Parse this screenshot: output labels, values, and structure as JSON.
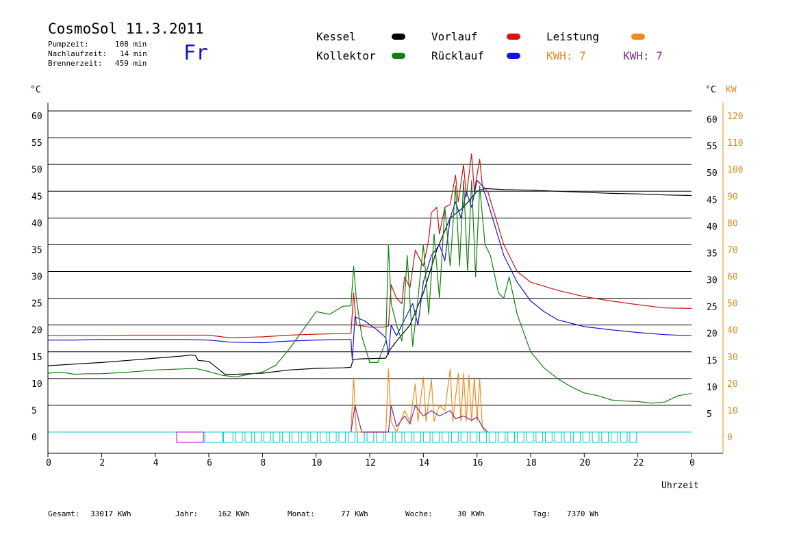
{
  "header": {
    "title": "CosmoSol 11.3.2011",
    "day": "Fr",
    "stats": [
      {
        "label": "Pumpzeit:",
        "value": "108 min"
      },
      {
        "label": "Nachlaufzeit:",
        "value": "14 min"
      },
      {
        "label": "Brennerzeit:",
        "value": "459 min"
      }
    ]
  },
  "legend": {
    "items": [
      {
        "label": "Kessel",
        "color": "#000000"
      },
      {
        "label": "Vorlauf",
        "color": "#e01010"
      },
      {
        "label": "Leistung",
        "color": "#f08c1e"
      },
      {
        "label": "Kollektor",
        "color": "#108010"
      },
      {
        "label": "Rücklauf",
        "color": "#1414e0"
      }
    ],
    "kwh_orange": "KWH: 7",
    "kwh_purple": "KWH: 7"
  },
  "axes": {
    "left_unit": "°C",
    "right_unit_temp": "°C",
    "right_unit_power": "KW",
    "x_label": "Uhrzeit"
  },
  "footer": {
    "items": [
      {
        "label": "Gesamt:",
        "value": "33017 KWh"
      },
      {
        "label": "Jahr:",
        "value": "162 KWh"
      },
      {
        "label": "Monat:",
        "value": "77 KWh"
      },
      {
        "label": "Woche:",
        "value": "30 KWh"
      },
      {
        "label": "Tag:",
        "value": "7370 Wh"
      }
    ]
  },
  "chart_data": {
    "type": "line",
    "x_range": [
      0,
      24
    ],
    "x_ticks": [
      "0",
      "2",
      "4",
      "6",
      "8",
      "10",
      "12",
      "14",
      "16",
      "18",
      "20",
      "22",
      "0"
    ],
    "y_left_ticks": [
      "0",
      "5",
      "10",
      "15",
      "20",
      "25",
      "30",
      "35",
      "40",
      "45",
      "50",
      "55",
      "60"
    ],
    "y_right_temp_ticks": [
      "5",
      "10",
      "15",
      "20",
      "25",
      "30",
      "35",
      "40",
      "45",
      "50",
      "55",
      "60"
    ],
    "y_right_power_ticks": [
      "0",
      "10",
      "20",
      "30",
      "40",
      "50",
      "60",
      "70",
      "80",
      "90",
      "100",
      "110",
      "120"
    ],
    "ylim": [
      0,
      60
    ],
    "grid": "horizontal",
    "series": [
      {
        "name": "Kessel",
        "color": "#000000",
        "points": [
          [
            0,
            12.4
          ],
          [
            1,
            12.7
          ],
          [
            2,
            13
          ],
          [
            3,
            13.4
          ],
          [
            4,
            13.8
          ],
          [
            5,
            14.2
          ],
          [
            5.3,
            14.4
          ],
          [
            5.5,
            14.3
          ],
          [
            5.6,
            13.4
          ],
          [
            6,
            13.2
          ],
          [
            6.3,
            12
          ],
          [
            6.6,
            10.8
          ],
          [
            7,
            10.8
          ],
          [
            8,
            11
          ],
          [
            9,
            11.6
          ],
          [
            10,
            11.9
          ],
          [
            11,
            12
          ],
          [
            11.3,
            12.1
          ],
          [
            11.35,
            13
          ],
          [
            11.4,
            13.6
          ],
          [
            11.8,
            13.7
          ],
          [
            12.6,
            13.8
          ],
          [
            12.7,
            15
          ],
          [
            13,
            17
          ],
          [
            13.5,
            20
          ],
          [
            14,
            26
          ],
          [
            14.5,
            34
          ],
          [
            15,
            40
          ],
          [
            15.5,
            42
          ],
          [
            16,
            45
          ],
          [
            16.3,
            45.5
          ],
          [
            17,
            45.3
          ],
          [
            18,
            45.2
          ],
          [
            19,
            45
          ],
          [
            20,
            44.8
          ],
          [
            21,
            44.6
          ],
          [
            22,
            44.5
          ],
          [
            23,
            44.3
          ],
          [
            24,
            44.2
          ]
        ]
      },
      {
        "name": "Vorlauf",
        "color": "#c81414",
        "points": [
          [
            0,
            18
          ],
          [
            1,
            18
          ],
          [
            2,
            18
          ],
          [
            3,
            18.1
          ],
          [
            4,
            18.1
          ],
          [
            5,
            18.1
          ],
          [
            6,
            18.1
          ],
          [
            6.8,
            17.6
          ],
          [
            8,
            17.8
          ],
          [
            9,
            18.1
          ],
          [
            10,
            18.3
          ],
          [
            11,
            18.4
          ],
          [
            11.3,
            18.4
          ],
          [
            11.4,
            26
          ],
          [
            11.5,
            20
          ],
          [
            12,
            19.6
          ],
          [
            12.5,
            19.6
          ],
          [
            12.7,
            19.8
          ],
          [
            12.8,
            27.5
          ],
          [
            13,
            25
          ],
          [
            13.2,
            24
          ],
          [
            13.3,
            29
          ],
          [
            13.5,
            27
          ],
          [
            13.7,
            34
          ],
          [
            14,
            31
          ],
          [
            14.2,
            36
          ],
          [
            14.3,
            41
          ],
          [
            14.5,
            42
          ],
          [
            14.6,
            37
          ],
          [
            14.8,
            42
          ],
          [
            15,
            42.5
          ],
          [
            15.2,
            48
          ],
          [
            15.3,
            43
          ],
          [
            15.5,
            50
          ],
          [
            15.6,
            44
          ],
          [
            15.8,
            52
          ],
          [
            15.9,
            45
          ],
          [
            16.1,
            51
          ],
          [
            16.2,
            46
          ],
          [
            16.4,
            45
          ],
          [
            16.7,
            40
          ],
          [
            17,
            35
          ],
          [
            17.5,
            30
          ],
          [
            18,
            28
          ],
          [
            19,
            26.5
          ],
          [
            20,
            25.3
          ],
          [
            21,
            24.5
          ],
          [
            22,
            23.8
          ],
          [
            23,
            23.2
          ],
          [
            24,
            23.1
          ]
        ]
      },
      {
        "name": "Rücklauf",
        "color": "#1414c8",
        "points": [
          [
            0,
            17.2
          ],
          [
            1,
            17.2
          ],
          [
            2,
            17.3
          ],
          [
            3,
            17.3
          ],
          [
            4,
            17.3
          ],
          [
            5,
            17.3
          ],
          [
            6,
            17.2
          ],
          [
            6.8,
            16.8
          ],
          [
            8,
            16.7
          ],
          [
            9,
            17
          ],
          [
            10,
            17.2
          ],
          [
            11,
            17.3
          ],
          [
            11.3,
            17.3
          ],
          [
            11.35,
            13.5
          ],
          [
            11.45,
            21.5
          ],
          [
            11.8,
            20.8
          ],
          [
            12.3,
            19
          ],
          [
            12.6,
            17.6
          ],
          [
            12.7,
            14.5
          ],
          [
            12.8,
            20
          ],
          [
            13,
            18
          ],
          [
            13.3,
            21
          ],
          [
            13.6,
            24
          ],
          [
            13.8,
            20
          ],
          [
            14,
            28
          ],
          [
            14.3,
            33
          ],
          [
            14.6,
            35
          ],
          [
            14.8,
            32
          ],
          [
            15,
            40
          ],
          [
            15.2,
            43
          ],
          [
            15.4,
            40
          ],
          [
            15.6,
            45
          ],
          [
            15.8,
            42
          ],
          [
            16,
            47
          ],
          [
            16.2,
            46
          ],
          [
            16.4,
            43
          ],
          [
            16.7,
            38
          ],
          [
            17,
            33
          ],
          [
            17.5,
            28
          ],
          [
            18,
            24.5
          ],
          [
            18.5,
            22.5
          ],
          [
            19,
            21
          ],
          [
            20,
            19.7
          ],
          [
            21,
            19.1
          ],
          [
            22,
            18.6
          ],
          [
            23,
            18.2
          ],
          [
            24,
            18
          ]
        ]
      },
      {
        "name": "Kollektor",
        "color": "#108010",
        "points": [
          [
            0,
            11
          ],
          [
            0.5,
            11.2
          ],
          [
            1,
            10.8
          ],
          [
            1.5,
            10.9
          ],
          [
            2,
            10.9
          ],
          [
            3,
            11.2
          ],
          [
            4,
            11.6
          ],
          [
            5,
            11.8
          ],
          [
            5.5,
            11.9
          ],
          [
            6,
            11.3
          ],
          [
            6.5,
            10.6
          ],
          [
            7,
            10.3
          ],
          [
            7.5,
            10.8
          ],
          [
            8,
            11.2
          ],
          [
            8.5,
            12.5
          ],
          [
            9,
            15.5
          ],
          [
            9.5,
            19
          ],
          [
            10,
            22.5
          ],
          [
            10.5,
            22
          ],
          [
            11,
            23.5
          ],
          [
            11.3,
            23.6
          ],
          [
            11.4,
            31
          ],
          [
            11.5,
            25
          ],
          [
            11.7,
            18
          ],
          [
            12,
            13
          ],
          [
            12.3,
            13
          ],
          [
            12.6,
            17
          ],
          [
            12.7,
            35
          ],
          [
            12.8,
            24
          ],
          [
            13,
            20
          ],
          [
            13.2,
            17
          ],
          [
            13.4,
            33
          ],
          [
            13.6,
            16
          ],
          [
            13.8,
            25
          ],
          [
            14,
            35
          ],
          [
            14.2,
            22
          ],
          [
            14.4,
            37
          ],
          [
            14.6,
            25
          ],
          [
            14.8,
            42
          ],
          [
            15,
            31
          ],
          [
            15.2,
            46
          ],
          [
            15.35,
            31
          ],
          [
            15.5,
            47
          ],
          [
            15.65,
            30
          ],
          [
            15.8,
            47
          ],
          [
            15.95,
            29
          ],
          [
            16.1,
            46
          ],
          [
            16.3,
            35
          ],
          [
            16.5,
            33
          ],
          [
            16.8,
            26
          ],
          [
            17,
            25
          ],
          [
            17.2,
            29
          ],
          [
            17.5,
            22
          ],
          [
            18,
            15
          ],
          [
            18.5,
            12
          ],
          [
            19,
            10
          ],
          [
            19.5,
            8.5
          ],
          [
            20,
            7.3
          ],
          [
            20.5,
            6.8
          ],
          [
            21,
            6
          ],
          [
            21.5,
            5.8
          ],
          [
            22,
            5.7
          ],
          [
            22.5,
            5.4
          ],
          [
            23,
            5.6
          ],
          [
            23.5,
            6.8
          ],
          [
            24,
            7.2
          ]
        ]
      },
      {
        "name": "Leistung",
        "color": "#f08c1e",
        "points": [
          [
            11.3,
            0
          ],
          [
            11.4,
            10.2
          ],
          [
            11.5,
            0
          ],
          [
            12.6,
            0
          ],
          [
            12.7,
            11.8
          ],
          [
            12.8,
            2
          ],
          [
            13,
            0
          ],
          [
            13.3,
            4
          ],
          [
            13.5,
            2
          ],
          [
            13.7,
            9
          ],
          [
            13.8,
            2
          ],
          [
            14,
            10.2
          ],
          [
            14.1,
            2
          ],
          [
            14.3,
            9.8
          ],
          [
            14.4,
            2
          ],
          [
            14.6,
            5
          ],
          [
            14.8,
            4
          ],
          [
            15,
            11.8
          ],
          [
            15.1,
            2
          ],
          [
            15.3,
            11
          ],
          [
            15.4,
            2
          ],
          [
            15.5,
            11
          ],
          [
            15.6,
            2
          ],
          [
            15.7,
            10.6
          ],
          [
            15.8,
            2
          ],
          [
            15.9,
            10.2
          ],
          [
            16,
            2
          ],
          [
            16.1,
            9.8
          ],
          [
            16.2,
            1
          ],
          [
            16.3,
            0
          ]
        ]
      },
      {
        "name": "Leistung (purple)",
        "color": "#7a2a8a",
        "points": [
          [
            11.3,
            0
          ],
          [
            11.45,
            5
          ],
          [
            11.6,
            2
          ],
          [
            11.7,
            0
          ],
          [
            12.7,
            0
          ],
          [
            12.8,
            5
          ],
          [
            13,
            1
          ],
          [
            13.3,
            3
          ],
          [
            13.5,
            1.5
          ],
          [
            13.7,
            5
          ],
          [
            14,
            3
          ],
          [
            14.3,
            4
          ],
          [
            14.6,
            3
          ],
          [
            15,
            4
          ],
          [
            15.2,
            2.5
          ],
          [
            15.5,
            3
          ],
          [
            15.8,
            2.2
          ],
          [
            16,
            2.8
          ],
          [
            16.2,
            1
          ],
          [
            16.4,
            0
          ]
        ]
      }
    ],
    "pump_blocks": [
      [
        4.8,
        5.8
      ],
      [
        5.85,
        6.5
      ],
      [
        6.55,
        6.9
      ],
      [
        7.0,
        7.25
      ],
      [
        7.35,
        7.6
      ],
      [
        7.7,
        7.95
      ],
      [
        8.05,
        8.3
      ],
      [
        8.4,
        8.65
      ],
      [
        8.75,
        9.0
      ],
      [
        9.1,
        9.35
      ],
      [
        9.45,
        9.7
      ],
      [
        9.8,
        10.05
      ],
      [
        10.15,
        10.4
      ],
      [
        10.5,
        10.75
      ],
      [
        10.85,
        11.1
      ],
      [
        11.2,
        11.45
      ],
      [
        11.55,
        11.8
      ],
      [
        11.9,
        12.15
      ],
      [
        12.25,
        12.5
      ],
      [
        12.6,
        12.85
      ],
      [
        12.95,
        13.2
      ],
      [
        13.3,
        13.55
      ],
      [
        13.65,
        13.9
      ],
      [
        14.0,
        14.25
      ],
      [
        14.35,
        14.6
      ],
      [
        14.7,
        14.95
      ],
      [
        15.05,
        15.3
      ],
      [
        15.4,
        15.65
      ],
      [
        15.75,
        16.0
      ],
      [
        16.1,
        16.35
      ],
      [
        16.45,
        16.7
      ],
      [
        16.8,
        17.05
      ],
      [
        17.15,
        17.4
      ],
      [
        17.5,
        17.75
      ],
      [
        17.85,
        18.1
      ],
      [
        18.2,
        18.45
      ],
      [
        18.55,
        18.8
      ],
      [
        18.9,
        19.15
      ],
      [
        19.25,
        19.5
      ],
      [
        19.6,
        19.85
      ],
      [
        19.95,
        20.2
      ],
      [
        20.3,
        20.55
      ],
      [
        20.65,
        20.9
      ],
      [
        21.0,
        21.25
      ],
      [
        21.35,
        21.6
      ],
      [
        21.7,
        21.95
      ]
    ]
  }
}
